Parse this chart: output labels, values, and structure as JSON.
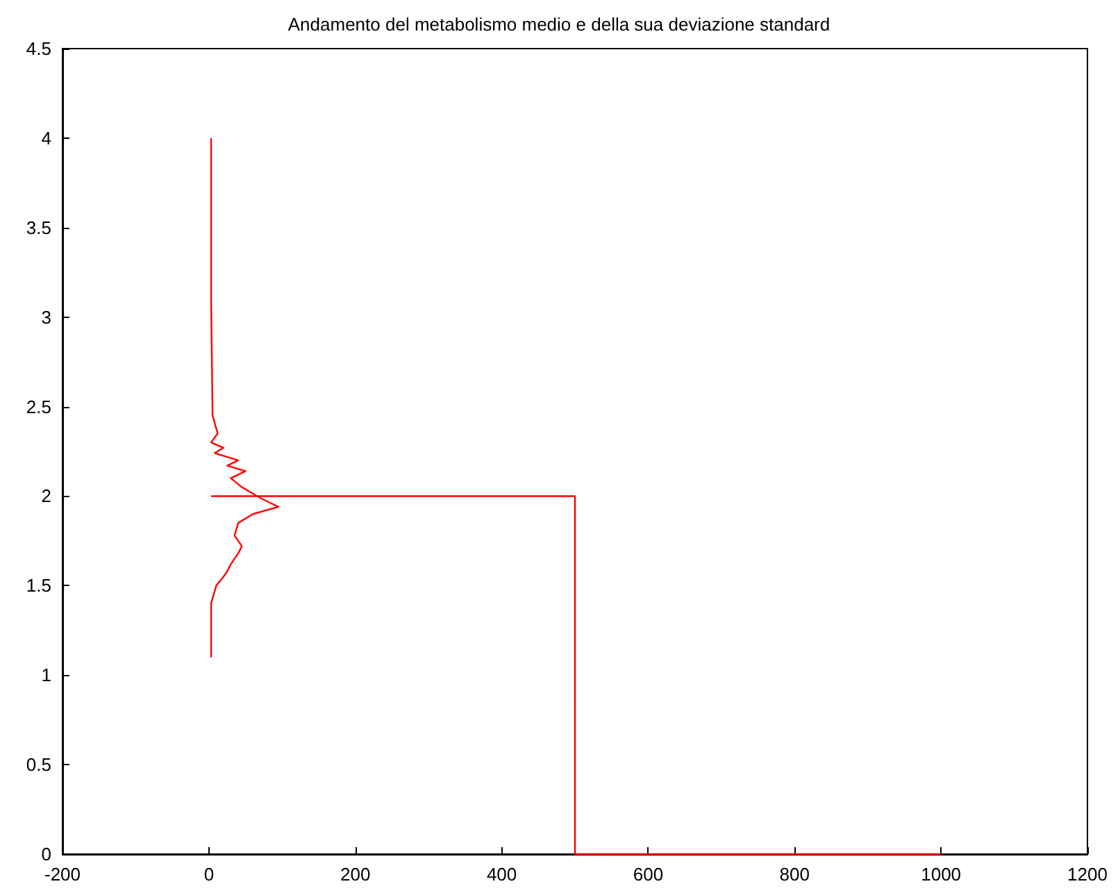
{
  "chart_data": {
    "type": "line",
    "title": "Andamento del metabolismo medio e della sua deviazione standard",
    "xlim": [
      -200,
      1200
    ],
    "xticks": [
      -200,
      0,
      200,
      400,
      600,
      800,
      1000,
      1200
    ],
    "ylim": [
      0,
      4.5
    ],
    "yticks": [
      0,
      0.5,
      1,
      1.5,
      2,
      2.5,
      3,
      3.5,
      4,
      4.5
    ],
    "grid": false,
    "marker": "none",
    "line_style": "solid",
    "series": [
      {
        "color": "#ff0000",
        "x": [
          3,
          3,
          3,
          3,
          3,
          5,
          12,
          3,
          20,
          8,
          40,
          25,
          50,
          30,
          45,
          70,
          85,
          95,
          60,
          40,
          35,
          45,
          40,
          30,
          25,
          20,
          10,
          3,
          3,
          3,
          3,
          3
        ],
        "values": [
          4.0,
          3.7,
          3.45,
          3.37,
          3.1,
          2.45,
          2.35,
          2.3,
          2.27,
          2.24,
          2.2,
          2.17,
          2.14,
          2.1,
          2.05,
          1.99,
          1.96,
          1.94,
          1.9,
          1.85,
          1.78,
          1.72,
          1.68,
          1.62,
          1.58,
          1.55,
          1.5,
          1.4,
          1.25,
          1.2,
          1.15,
          1.1
        ]
      },
      {
        "color": "#ff0000",
        "x": [
          3,
          500,
          500,
          1000
        ],
        "values": [
          2,
          2,
          0,
          0
        ]
      }
    ]
  }
}
